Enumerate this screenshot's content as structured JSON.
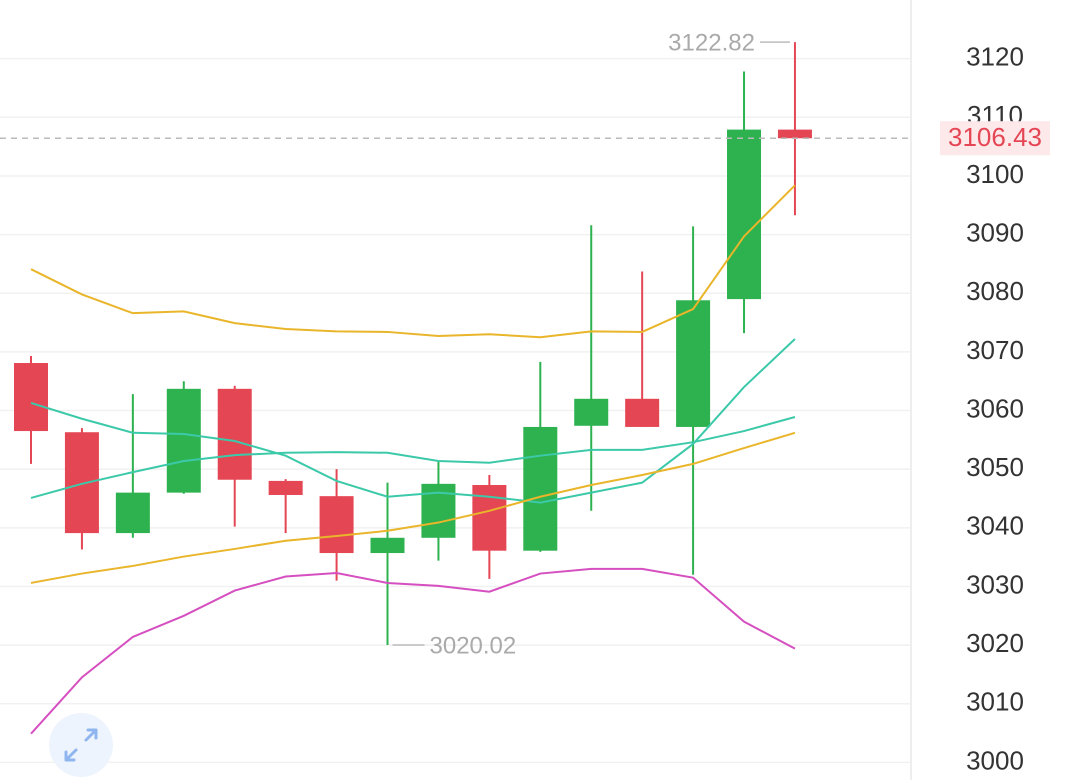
{
  "chart_data": {
    "type": "candlestick",
    "categories": [
      null,
      null,
      null,
      null,
      null,
      null,
      null,
      null,
      null,
      null,
      null,
      null,
      null,
      null,
      null,
      null
    ],
    "open": [
      3068.1,
      3056.3,
      3039.1,
      3046.0,
      3063.7,
      3048.0,
      3045.4,
      3035.7,
      3038.3,
      3047.3,
      3036.1,
      3057.4,
      3062.0,
      3057.2,
      3079.0,
      3107.9
    ],
    "high": [
      3069.3,
      3057.0,
      3062.8,
      3065.0,
      3064.2,
      3048.3,
      3050.0,
      3047.7,
      3051.4,
      3049.0,
      3068.3,
      3091.6,
      3083.7,
      3091.4,
      3117.8,
      3122.82
    ],
    "low": [
      3050.9,
      3036.3,
      3038.3,
      3045.8,
      3040.2,
      3039.1,
      3031.0,
      3020.02,
      3034.4,
      3031.3,
      3035.9,
      3042.9,
      3057.2,
      3032.0,
      3073.2,
      3093.3
    ],
    "close": [
      3056.5,
      3039.1,
      3046.0,
      3063.7,
      3048.2,
      3045.6,
      3035.7,
      3038.3,
      3047.5,
      3036.1,
      3057.2,
      3062.0,
      3057.2,
      3078.8,
      3107.9,
      3106.43
    ],
    "up_color": "#2db24f",
    "down_color": "#e54654",
    "lines": [
      {
        "color": "#e9b52a",
        "values": [
          3084.1,
          3079.8,
          3076.6,
          3076.9,
          3074.9,
          3073.9,
          3073.5,
          3073.4,
          3072.7,
          3073.0,
          3072.5,
          3073.5,
          3073.4,
          3077.3,
          3089.7,
          3098.4
        ]
      },
      {
        "color": "#3cc9a9",
        "values": [
          3061.3,
          3058.6,
          3056.2,
          3056.0,
          3054.8,
          3052.3,
          3048.0,
          3045.3,
          3046.0,
          3045.3,
          3044.3,
          3046.0,
          3047.7,
          3054.3,
          3064.0,
          3072.2
        ]
      },
      {
        "color": "#3cc9a9",
        "values": [
          3045.1,
          3047.5,
          3049.5,
          3051.4,
          3052.4,
          3052.8,
          3052.9,
          3052.8,
          3051.4,
          3051.1,
          3052.3,
          3053.3,
          3053.3,
          3054.6,
          3056.5,
          3058.9
        ]
      },
      {
        "color": "#e9b52a",
        "values": [
          3030.6,
          3032.2,
          3033.5,
          3035.1,
          3036.4,
          3037.8,
          3038.6,
          3039.5,
          3040.9,
          3042.9,
          3045.3,
          3047.3,
          3049.0,
          3050.9,
          3053.6,
          3056.2
        ]
      },
      {
        "color": "#d64fc0",
        "values": [
          3004.9,
          3014.5,
          3021.4,
          3025.0,
          3029.3,
          3031.7,
          3032.3,
          3030.6,
          3030.1,
          3029.1,
          3032.2,
          3033.0,
          3033.0,
          3031.5,
          3024.0,
          3019.4
        ]
      }
    ],
    "ylim": [
      2997,
      3130
    ],
    "yticks": [
      3000,
      3010,
      3020,
      3030,
      3040,
      3050,
      3060,
      3070,
      3080,
      3090,
      3100,
      3110,
      3120
    ],
    "grid": true
  }
}
